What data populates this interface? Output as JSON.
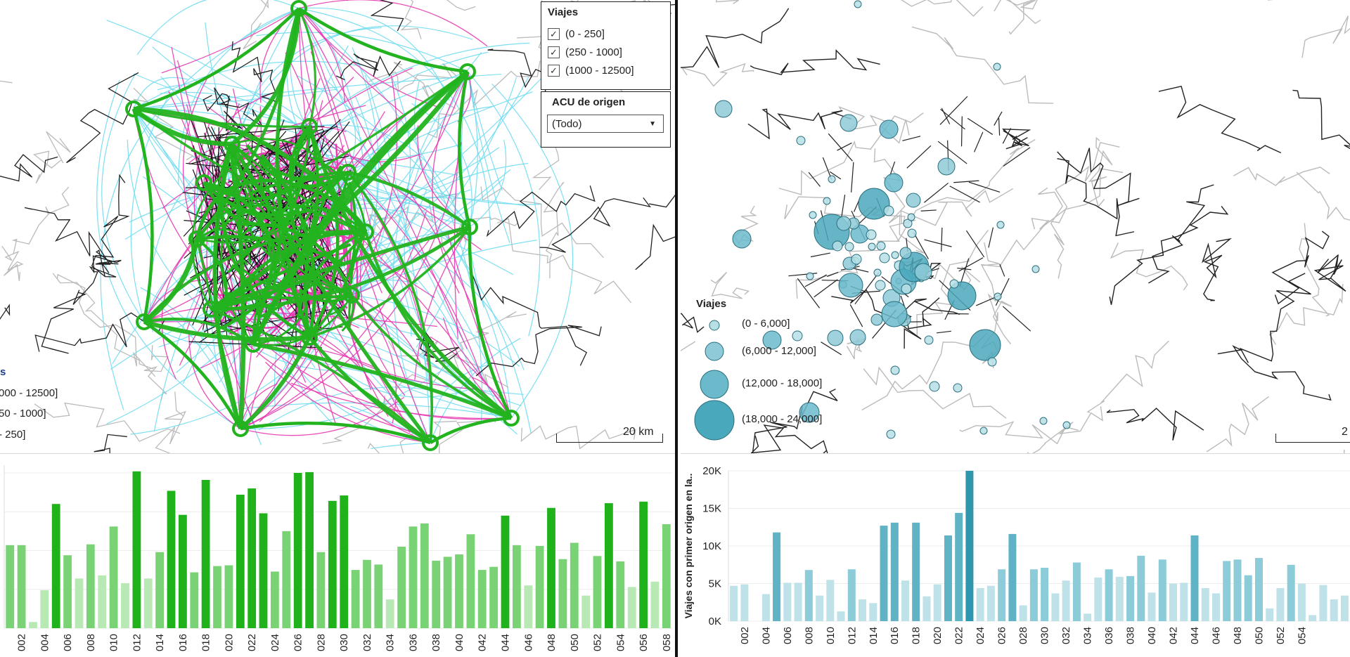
{
  "left_map": {
    "filter_viajes": {
      "title": "Viajes",
      "items": [
        "(0 - 250]",
        "(250 - 1000]",
        "(1000 - 12500]"
      ],
      "check_glyph": "✓"
    },
    "filter_acu": {
      "title": "ACU de origen",
      "value": "(Todo)"
    },
    "legend": {
      "title": "s",
      "items": [
        {
          "label": "000 - 12500]",
          "color": "#22b31e"
        },
        {
          "label": "50 - 1000]",
          "color": "#e83ab1"
        },
        {
          "label": "- 250]",
          "color": "#6fdcf0"
        }
      ]
    },
    "scale": "20 km"
  },
  "right_map": {
    "legend": {
      "title": "Viajes",
      "items": [
        "(0 - 6,000]",
        "(6,000 - 12,000]",
        "(12,000 - 18,000]",
        "(18,000 - 24,000]"
      ]
    },
    "scale": "2"
  },
  "colors": {
    "green_strong": "#22b31e",
    "green_light": "#7fd67a",
    "magenta": "#e83ab1",
    "cyan": "#6fdcf0",
    "teal": "#3aa3b7",
    "teal_light": "#b6dfe6",
    "border_dark": "#111111",
    "border_gray": "#bbbbbb"
  },
  "chart_data": [
    {
      "type": "bar",
      "categories": [
        "001",
        "002",
        "003",
        "004",
        "005",
        "006",
        "007",
        "008",
        "009",
        "010",
        "011",
        "012",
        "013",
        "014",
        "015",
        "016",
        "017",
        "018",
        "019",
        "020",
        "021",
        "022",
        "023",
        "024",
        "025",
        "026",
        "027",
        "028",
        "029",
        "030",
        "031",
        "032",
        "033",
        "034",
        "035",
        "036",
        "037",
        "038",
        "039",
        "040",
        "041",
        "042",
        "043",
        "044",
        "045",
        "046",
        "047",
        "048",
        "049",
        "050",
        "051",
        "052",
        "053",
        "054",
        "055",
        "056",
        "057",
        "058"
      ],
      "values": [
        107,
        107,
        8,
        49,
        160,
        94,
        64,
        108,
        68,
        131,
        58,
        202,
        64,
        98,
        177,
        146,
        72,
        191,
        80,
        81,
        172,
        180,
        148,
        73,
        125,
        200,
        201,
        98,
        164,
        171,
        75,
        88,
        82,
        37,
        105,
        131,
        135,
        87,
        92,
        95,
        121,
        75,
        79,
        145,
        107,
        55,
        106,
        155,
        89,
        110,
        42,
        93,
        161,
        86,
        53,
        163,
        60,
        134
      ],
      "max_display": 210,
      "title": "",
      "xlabel": "",
      "ylabel": "",
      "tick_labels": [
        "002",
        "004",
        "006",
        "008",
        "010",
        "012",
        "014",
        "016",
        "018",
        "020",
        "022",
        "024",
        "026",
        "028",
        "030",
        "032",
        "034",
        "036",
        "038",
        "040",
        "042",
        "044",
        "046",
        "048",
        "050",
        "052",
        "054",
        "056",
        "058"
      ]
    },
    {
      "type": "bar",
      "categories": [
        "001",
        "002",
        "003",
        "004",
        "005",
        "006",
        "007",
        "008",
        "009",
        "010",
        "011",
        "012",
        "013",
        "014",
        "015",
        "016",
        "017",
        "018",
        "019",
        "020",
        "021",
        "022",
        "023",
        "024",
        "025",
        "026",
        "027",
        "028",
        "029",
        "030",
        "031",
        "032",
        "033",
        "034",
        "035",
        "036",
        "037",
        "038",
        "039",
        "040",
        "041",
        "042",
        "043",
        "044",
        "045",
        "046",
        "047",
        "048",
        "049",
        "050",
        "051",
        "052",
        "053",
        "054",
        "055",
        "056",
        "057",
        "058"
      ],
      "values": [
        4700,
        4900,
        0,
        3600,
        11800,
        5100,
        5100,
        6800,
        3400,
        5500,
        1300,
        6900,
        2900,
        2400,
        12700,
        13100,
        5400,
        13100,
        3300,
        4900,
        11400,
        14400,
        20000,
        4400,
        4700,
        6900,
        11600,
        2100,
        6900,
        7100,
        3700,
        5400,
        7800,
        1000,
        5800,
        6900,
        5900,
        6000,
        8700,
        3800,
        8200,
        5000,
        5100,
        11400,
        4400,
        3700,
        8000,
        8200,
        6100,
        8400,
        1700,
        4400,
        7500,
        5000,
        800,
        4800,
        2900,
        3400
      ],
      "ylim": [
        0,
        20000
      ],
      "yticks": [
        "0K",
        "5K",
        "10K",
        "15K",
        "20K"
      ],
      "ylabel": "Viajes con primer origen en la..",
      "title": "",
      "xlabel": "",
      "tick_labels": [
        "002",
        "004",
        "006",
        "008",
        "010",
        "012",
        "014",
        "016",
        "018",
        "020",
        "022",
        "024",
        "026",
        "028",
        "030",
        "032",
        "034",
        "036",
        "038",
        "040",
        "042",
        "044",
        "046",
        "048",
        "050",
        "052",
        "054"
      ]
    }
  ]
}
